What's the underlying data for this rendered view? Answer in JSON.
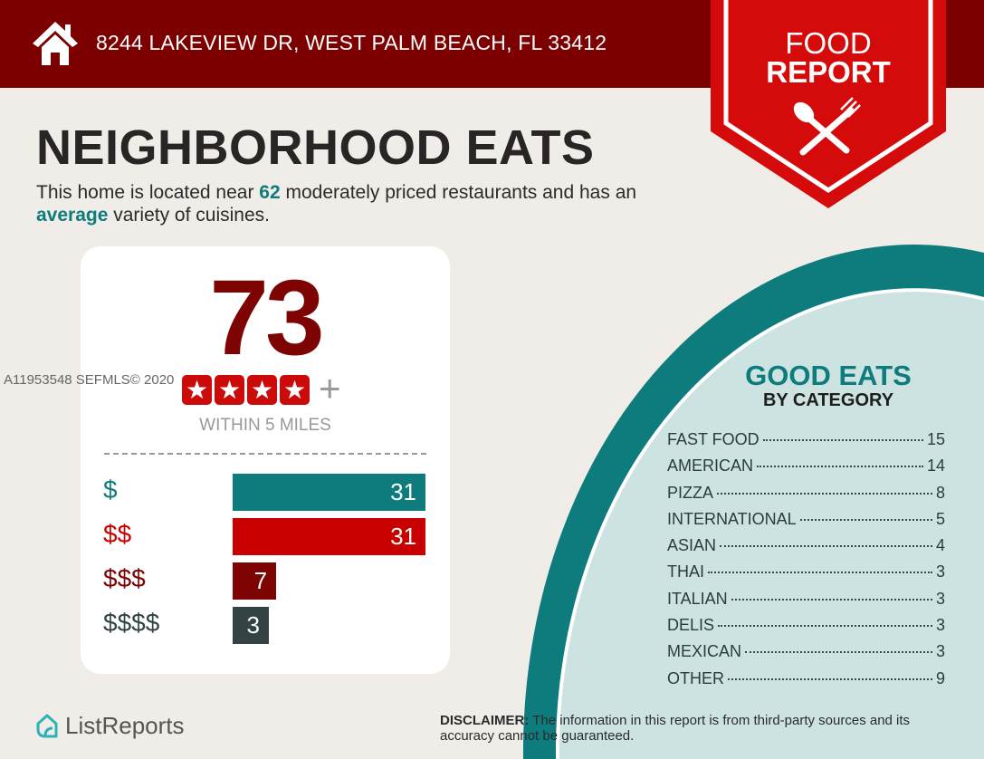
{
  "header": {
    "address": "8244 LAKEVIEW DR, WEST PALM BEACH, FL 33412",
    "icon": "home-icon"
  },
  "badge": {
    "line1": "FOOD",
    "line2": "REPORT",
    "icon": "spoon-fork-icon"
  },
  "title": "NEIGHBORHOOD EATS",
  "subtitle": {
    "p1": "This home is located near ",
    "count": "62",
    "p2": " moderately priced restaurants and has an ",
    "variety": "average",
    "p3": " variety of cuisines."
  },
  "score": {
    "value": "73",
    "stars": 4,
    "plus": "+",
    "within": "WITHIN 5 MILES"
  },
  "watermark": "A11953548  SEFMLS© 2020",
  "prices": [
    {
      "label": "$",
      "value": 31,
      "color": "#0e7b7c",
      "text": "31"
    },
    {
      "label": "$$",
      "value": 31,
      "color": "#c90000",
      "text": "31"
    },
    {
      "label": "$$$",
      "value": 7,
      "color": "#7e0303",
      "text": "7"
    },
    {
      "label": "$$$$",
      "value": 3,
      "color": "#334344",
      "text": "3"
    }
  ],
  "good_eats": {
    "title": "GOOD EATS",
    "subtitle": "BY CATEGORY",
    "categories": [
      {
        "name": "FAST FOOD",
        "count": "15"
      },
      {
        "name": "AMERICAN",
        "count": "14"
      },
      {
        "name": "PIZZA",
        "count": "8"
      },
      {
        "name": "INTERNATIONAL",
        "count": "5"
      },
      {
        "name": "ASIAN",
        "count": "4"
      },
      {
        "name": "THAI",
        "count": "3"
      },
      {
        "name": "ITALIAN",
        "count": "3"
      },
      {
        "name": "DELIS",
        "count": "3"
      },
      {
        "name": "MEXICAN",
        "count": "3"
      },
      {
        "name": "OTHER",
        "count": "9"
      }
    ]
  },
  "footer": {
    "logo": "ListReports",
    "disclaimer_label": "DISCLAIMER:",
    "disclaimer_text": " The information in this report is from third-party sources and its accuracy cannot be guaranteed."
  },
  "colors": {
    "header": "#7d0000",
    "badge": "#d50b0b",
    "teal": "#0e7b7c",
    "plate": "#cde3e1",
    "background": "#f0ece8"
  }
}
